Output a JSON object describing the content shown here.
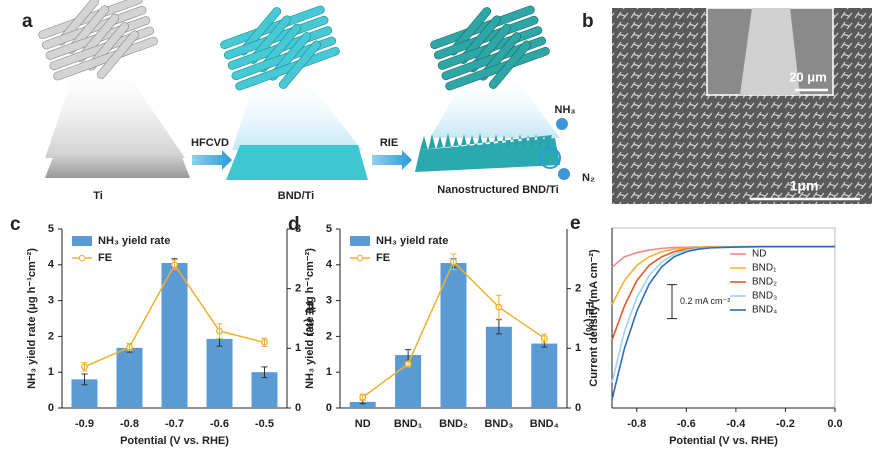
{
  "panel_a": {
    "label": "a",
    "steps": [
      "Ti",
      "BND/Ti",
      "Nanostructured BND/Ti"
    ],
    "arrows": [
      "HFCVD",
      "RIE"
    ],
    "molecules": [
      "NH₃",
      "N₂"
    ]
  },
  "panel_b": {
    "label": "b",
    "inset_scale": "20 μm",
    "scale": "1μm"
  },
  "chart_data": [
    {
      "type": "bar",
      "panel": "c",
      "xlabel": "Potential (V vs. RHE)",
      "ylabel": "NH₃ yield rate (μg h⁻¹cm⁻²)",
      "y2label": "FE (%)",
      "categories": [
        "-0.9",
        "-0.8",
        "-0.7",
        "-0.6",
        "-0.5"
      ],
      "ylim": [
        0,
        5
      ],
      "yticks": [
        0,
        1,
        2,
        3,
        4,
        5
      ],
      "y2lim": [
        0,
        3
      ],
      "y2ticks": [
        0,
        1,
        2,
        3
      ],
      "series": [
        {
          "name": "NH₃ yield rate",
          "color": "#5b9bd5",
          "values": [
            0.8,
            1.68,
            4.05,
            1.93,
            1.0
          ],
          "errors": [
            0.15,
            0.12,
            0.12,
            0.2,
            0.15
          ]
        },
        {
          "name": "FE",
          "type": "line",
          "axis": "y2",
          "color": "#f0b030",
          "values": [
            0.69,
            1.02,
            2.4,
            1.29,
            1.1
          ],
          "errors": [
            0.07,
            0.06,
            0.08,
            0.12,
            0.07
          ]
        }
      ]
    },
    {
      "type": "bar",
      "panel": "d",
      "ylabel": "NH₃ yield rate (μg h⁻¹cm⁻²)",
      "y2label": "FE (%)",
      "categories": [
        "ND",
        "BND₁",
        "BND₂",
        "BND₃",
        "BND₄"
      ],
      "ylim": [
        0,
        5
      ],
      "yticks": [
        0,
        1,
        2,
        3,
        4,
        5
      ],
      "y2lim": [
        0,
        3
      ],
      "y2ticks": [
        0,
        1,
        2
      ],
      "series": [
        {
          "name": "NH₃ yield rate",
          "color": "#5b9bd5",
          "values": [
            0.17,
            1.48,
            4.05,
            2.27,
            1.8
          ],
          "errors": [
            0.05,
            0.15,
            0.12,
            0.2,
            0.1
          ]
        },
        {
          "name": "FE",
          "type": "line",
          "axis": "y2",
          "color": "#f0b030",
          "values": [
            0.18,
            0.74,
            2.45,
            1.69,
            1.17
          ],
          "errors": [
            0.05,
            0.05,
            0.13,
            0.2,
            0.07
          ]
        }
      ]
    },
    {
      "type": "line",
      "panel": "e",
      "xlabel": "Potential (V vs. RHE)",
      "ylabel": "Current density (mA cm⁻²)",
      "xlim": [
        -0.9,
        0.0
      ],
      "xticks": [
        -0.8,
        -0.6,
        -0.4,
        -0.2,
        {
          "value": 0,
          "label": "0.0"
        }
      ],
      "ylim": [
        -0.95,
        0.11
      ],
      "scale_bar": {
        "value": 0.2,
        "label": "0.2 mA cm⁻²"
      },
      "x": [
        -0.9,
        -0.85,
        -0.8,
        -0.75,
        -0.7,
        -0.65,
        -0.6,
        -0.55,
        -0.5,
        -0.4,
        -0.3,
        -0.2,
        -0.1,
        0.0
      ],
      "series": [
        {
          "name": "ND",
          "color": "#f08a8a",
          "values": [
            -0.12,
            -0.06,
            -0.035,
            -0.02,
            -0.01,
            -0.005,
            -0.003,
            -0.002,
            0,
            0,
            0,
            0,
            0,
            0
          ]
        },
        {
          "name": "BND₁",
          "color": "#f5b335",
          "values": [
            -0.34,
            -0.2,
            -0.11,
            -0.06,
            -0.03,
            -0.015,
            -0.008,
            -0.004,
            -0.002,
            0,
            0,
            0,
            0,
            0
          ]
        },
        {
          "name": "BND₂",
          "color": "#e2592a",
          "values": [
            -0.55,
            -0.35,
            -0.2,
            -0.11,
            -0.06,
            -0.03,
            -0.015,
            -0.008,
            -0.004,
            -0.001,
            0,
            0,
            0,
            0
          ]
        },
        {
          "name": "BND₃",
          "color": "#9fd4ea",
          "values": [
            -0.8,
            -0.5,
            -0.3,
            -0.17,
            -0.09,
            -0.045,
            -0.02,
            -0.01,
            -0.005,
            -0.001,
            0,
            0,
            0,
            0
          ]
        },
        {
          "name": "BND₄",
          "color": "#2e6db4",
          "values": [
            -0.9,
            -0.6,
            -0.38,
            -0.22,
            -0.12,
            -0.06,
            -0.03,
            -0.014,
            -0.007,
            -0.002,
            0,
            0,
            0,
            0
          ]
        }
      ]
    }
  ]
}
